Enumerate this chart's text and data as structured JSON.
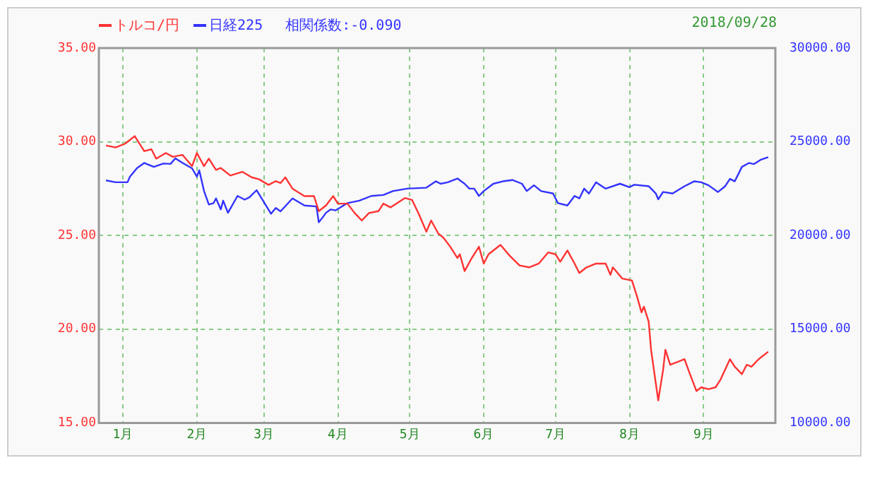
{
  "chart_data": {
    "type": "line",
    "legend": "top left",
    "grid": true,
    "marker": "none",
    "line_style": "solid",
    "annotations": [
      "相関係数:-0.090",
      "2018/09/28"
    ],
    "xlim": [
      "2017-12-22",
      "2018-10-01"
    ],
    "xticks": [
      {
        "value": "2018-01-01",
        "label": "1月"
      },
      {
        "value": "2018-02-01",
        "label": "2月"
      },
      {
        "value": "2018-03-01",
        "label": "3月"
      },
      {
        "value": "2018-04-01",
        "label": "4月"
      },
      {
        "value": "2018-05-01",
        "label": "5月"
      },
      {
        "value": "2018-06-01",
        "label": "6月"
      },
      {
        "value": "2018-07-01",
        "label": "7月"
      },
      {
        "value": "2018-08-01",
        "label": "8月"
      },
      {
        "value": "2018-09-01",
        "label": "9月"
      }
    ],
    "ylim": [
      15,
      35
    ],
    "yticks": [
      {
        "value": 15,
        "label": "15.00"
      },
      {
        "value": 20,
        "label": "20.00"
      },
      {
        "value": 25,
        "label": "25.00"
      },
      {
        "value": 30,
        "label": "30.00"
      },
      {
        "value": 35,
        "label": "35.00"
      }
    ],
    "y2lim": [
      10000,
      30000
    ],
    "y2ticks": [
      {
        "value": 10000,
        "label": "10000.00"
      },
      {
        "value": 15000,
        "label": "15000.00"
      },
      {
        "value": 20000,
        "label": "20000.00"
      },
      {
        "value": 25000,
        "label": "25000.00"
      },
      {
        "value": 30000,
        "label": "30000.00"
      }
    ],
    "series": [
      {
        "name": "トルコ/円",
        "color": "#ff3333",
        "x": [
          "2017-12-25",
          "2017-12-29",
          "2018-01-02",
          "2018-01-06",
          "2018-01-10",
          "2018-01-13",
          "2018-01-15",
          "2018-01-19",
          "2018-01-22",
          "2018-01-26",
          "2018-01-30",
          "2018-02-01",
          "2018-02-04",
          "2018-02-06",
          "2018-02-09",
          "2018-02-11",
          "2018-02-15",
          "2018-02-20",
          "2018-02-24",
          "2018-02-27",
          "2018-03-03",
          "2018-03-06",
          "2018-03-08",
          "2018-03-10",
          "2018-03-13",
          "2018-03-18",
          "2018-03-22",
          "2018-03-24",
          "2018-03-27",
          "2018-03-30",
          "2018-04-01",
          "2018-04-05",
          "2018-04-08",
          "2018-04-11",
          "2018-04-14",
          "2018-04-18",
          "2018-04-20",
          "2018-04-23",
          "2018-04-29",
          "2018-05-02",
          "2018-05-05",
          "2018-05-08",
          "2018-05-10",
          "2018-05-13",
          "2018-05-15",
          "2018-05-18",
          "2018-05-21",
          "2018-05-22",
          "2018-05-24",
          "2018-05-27",
          "2018-05-30",
          "2018-06-01",
          "2018-06-03",
          "2018-06-08",
          "2018-06-12",
          "2018-06-16",
          "2018-06-20",
          "2018-06-24",
          "2018-06-28",
          "2018-07-01",
          "2018-07-03",
          "2018-07-06",
          "2018-07-09",
          "2018-07-11",
          "2018-07-14",
          "2018-07-18",
          "2018-07-22",
          "2018-07-24",
          "2018-07-25",
          "2018-07-29",
          "2018-08-02",
          "2018-08-04",
          "2018-08-06",
          "2018-08-07",
          "2018-08-09",
          "2018-08-10",
          "2018-08-13",
          "2018-08-15",
          "2018-08-16",
          "2018-08-18",
          "2018-08-24",
          "2018-08-26",
          "2018-08-29",
          "2018-08-31",
          "2018-09-03",
          "2018-09-06",
          "2018-09-08",
          "2018-09-12",
          "2018-09-14",
          "2018-09-17",
          "2018-09-19",
          "2018-09-21",
          "2018-09-24",
          "2018-09-28"
        ],
        "values": [
          29.8,
          29.7,
          29.9,
          30.3,
          29.5,
          29.6,
          29.1,
          29.4,
          29.2,
          29.3,
          28.7,
          29.4,
          28.7,
          29.1,
          28.5,
          28.6,
          28.2,
          28.4,
          28.1,
          28.0,
          27.7,
          27.9,
          27.8,
          28.1,
          27.5,
          27.1,
          27.1,
          26.3,
          26.6,
          27.1,
          26.7,
          26.7,
          26.2,
          25.8,
          26.2,
          26.3,
          26.7,
          26.5,
          27.0,
          26.9,
          26.1,
          25.2,
          25.8,
          25.1,
          24.9,
          24.4,
          23.8,
          24.0,
          23.1,
          23.8,
          24.4,
          23.5,
          24.0,
          24.5,
          23.9,
          23.4,
          23.3,
          23.5,
          24.1,
          24.0,
          23.6,
          24.2,
          23.5,
          23.0,
          23.3,
          23.5,
          23.5,
          22.9,
          23.3,
          22.7,
          22.6,
          21.8,
          20.9,
          21.2,
          20.4,
          18.9,
          16.2,
          17.8,
          18.9,
          18.1,
          18.4,
          17.7,
          16.7,
          16.9,
          16.8,
          16.9,
          17.3,
          18.4,
          18.0,
          17.6,
          18.1,
          18.0,
          18.4,
          18.8
        ]
      },
      {
        "name": "日経225",
        "color": "#3333ff",
        "axis": "y2",
        "x": [
          "2017-12-25",
          "2017-12-29",
          "2018-01-03",
          "2018-01-04",
          "2018-01-07",
          "2018-01-10",
          "2018-01-14",
          "2018-01-18",
          "2018-01-21",
          "2018-01-23",
          "2018-01-26",
          "2018-01-30",
          "2018-02-01",
          "2018-02-02",
          "2018-02-04",
          "2018-02-06",
          "2018-02-08",
          "2018-02-09",
          "2018-02-11",
          "2018-02-12",
          "2018-02-14",
          "2018-02-18",
          "2018-02-21",
          "2018-02-23",
          "2018-02-26",
          "2018-03-04",
          "2018-03-06",
          "2018-03-08",
          "2018-03-13",
          "2018-03-18",
          "2018-03-23",
          "2018-03-24",
          "2018-03-26",
          "2018-03-27",
          "2018-03-29",
          "2018-03-31",
          "2018-04-05",
          "2018-04-10",
          "2018-04-15",
          "2018-04-20",
          "2018-04-24",
          "2018-04-30",
          "2018-05-08",
          "2018-05-12",
          "2018-05-14",
          "2018-05-17",
          "2018-05-21",
          "2018-05-24",
          "2018-05-26",
          "2018-05-28",
          "2018-05-30",
          "2018-06-01",
          "2018-06-05",
          "2018-06-09",
          "2018-06-13",
          "2018-06-17",
          "2018-06-19",
          "2018-06-22",
          "2018-06-25",
          "2018-06-30",
          "2018-07-02",
          "2018-07-06",
          "2018-07-09",
          "2018-07-11",
          "2018-07-13",
          "2018-07-15",
          "2018-07-18",
          "2018-07-22",
          "2018-07-28",
          "2018-08-01",
          "2018-08-03",
          "2018-08-09",
          "2018-08-12",
          "2018-08-13",
          "2018-08-15",
          "2018-08-19",
          "2018-08-24",
          "2018-08-28",
          "2018-08-31",
          "2018-09-03",
          "2018-09-07",
          "2018-09-10",
          "2018-09-12",
          "2018-09-14",
          "2018-09-17",
          "2018-09-20",
          "2018-09-22",
          "2018-09-25",
          "2018-09-28"
        ],
        "values": [
          22940,
          22840,
          22840,
          23140,
          23600,
          23870,
          23660,
          23840,
          23820,
          24120,
          23870,
          23580,
          23140,
          23480,
          22370,
          21650,
          21730,
          21980,
          21390,
          21860,
          21210,
          22110,
          21910,
          22040,
          22420,
          21160,
          21470,
          21290,
          21980,
          21600,
          21550,
          20700,
          21030,
          21210,
          21390,
          21340,
          21730,
          21860,
          22110,
          22160,
          22370,
          22500,
          22550,
          22890,
          22760,
          22840,
          23040,
          22760,
          22500,
          22500,
          22110,
          22370,
          22760,
          22890,
          22960,
          22760,
          22370,
          22680,
          22370,
          22240,
          21730,
          21600,
          22110,
          21980,
          22500,
          22240,
          22840,
          22500,
          22760,
          22580,
          22710,
          22630,
          22240,
          21930,
          22320,
          22240,
          22630,
          22890,
          22840,
          22680,
          22320,
          22630,
          23020,
          22890,
          23660,
          23870,
          23810,
          24050,
          24180
        ]
      }
    ]
  }
}
